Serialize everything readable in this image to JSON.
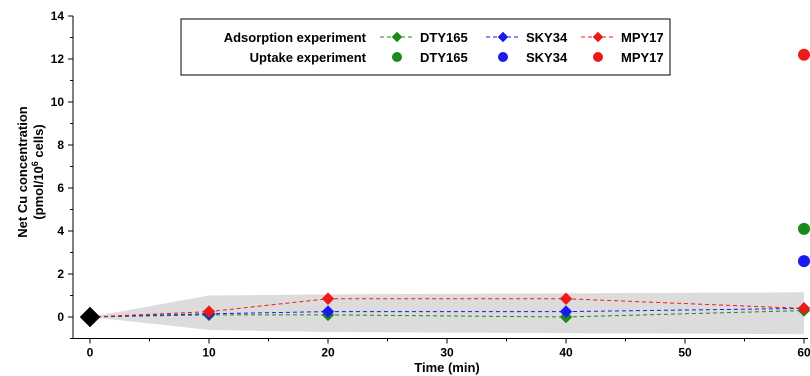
{
  "chart_data": {
    "type": "scatter",
    "xlabel": "Time (min)",
    "ylabel_line1": "Net Cu concentration",
    "ylabel_line2_prefix": "(pmol/10",
    "ylabel_line2_sup": "6",
    "ylabel_line2_suffix": " cells)",
    "xlim": [
      0,
      60
    ],
    "ylim": [
      -1,
      14
    ],
    "x_ticks": [
      0,
      10,
      20,
      30,
      40,
      50,
      60
    ],
    "y_ticks": [
      0,
      2,
      4,
      6,
      8,
      10,
      12,
      14
    ],
    "grid": false,
    "legend": {
      "placement": "top-center",
      "rows": [
        {
          "label": "Adsorption experiment",
          "entries": [
            "DTY165",
            "SKY34",
            "MPY17"
          ],
          "marker": "diamond"
        },
        {
          "label": "Uptake experiment",
          "entries": [
            "DTY165",
            "SKY34",
            "MPY17"
          ],
          "marker": "circle"
        }
      ]
    },
    "colors": {
      "DTY165": "#1a8a1a",
      "SKY34": "#1a1aee",
      "MPY17": "#ee1a1a",
      "start": "#000000",
      "band": "#dcdcdc"
    },
    "start_point": {
      "x": 0,
      "y": 0
    },
    "band": {
      "x": [
        0,
        10,
        20,
        40,
        60
      ],
      "upper": [
        0,
        1.0,
        1.05,
        1.1,
        1.15
      ],
      "lower": [
        0,
        -0.6,
        -0.7,
        -0.75,
        -0.8
      ]
    },
    "adsorption_series": [
      {
        "name": "DTY165",
        "x": [
          0,
          10,
          20,
          40,
          60
        ],
        "y": [
          0,
          0.1,
          0.1,
          0.0,
          0.3
        ]
      },
      {
        "name": "SKY34",
        "x": [
          0,
          10,
          20,
          40,
          60
        ],
        "y": [
          0,
          0.15,
          0.25,
          0.25,
          0.4
        ]
      },
      {
        "name": "MPY17",
        "x": [
          0,
          10,
          20,
          40,
          60
        ],
        "y": [
          0,
          0.25,
          0.85,
          0.85,
          0.4
        ]
      }
    ],
    "uptake_series": [
      {
        "name": "DTY165",
        "x": [
          60
        ],
        "y": [
          4.1
        ]
      },
      {
        "name": "SKY34",
        "x": [
          60
        ],
        "y": [
          2.6
        ]
      },
      {
        "name": "MPY17",
        "x": [
          60
        ],
        "y": [
          12.2
        ]
      }
    ]
  }
}
